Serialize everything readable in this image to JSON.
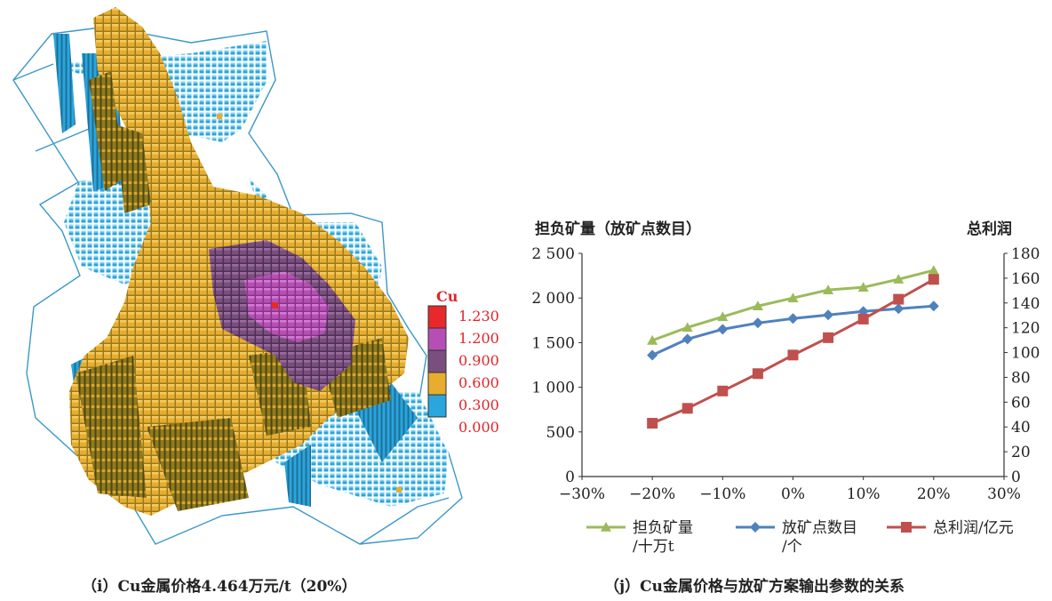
{
  "block_model": {
    "legend": {
      "title": "Cu",
      "entries": [
        {
          "label": "1.230",
          "color": "#e8282b"
        },
        {
          "label": "1.200",
          "color": "#b64fb5"
        },
        {
          "label": "0.900",
          "color": "#7a4f7e"
        },
        {
          "label": "0.600",
          "color": "#e8ad2e"
        },
        {
          "label": "0.300",
          "color": "#2aa6dc"
        },
        {
          "label": "0.000",
          "color": null
        }
      ],
      "label_color": "#e0242a"
    },
    "outline_color": "#3a98c8"
  },
  "captions": {
    "left": "（i）Cu金属价格4.464万元/t（20%）",
    "right": "（j）Cu金属价格与放矿方案输出参数的关系"
  },
  "chart_data": {
    "type": "line",
    "title_left": "担负矿量（放矿点数目）",
    "title_right": "总利润",
    "x_ticks": [
      "−30%",
      "−20%",
      "−10%",
      "0%",
      "10%",
      "20%",
      "30%"
    ],
    "x_range": [
      -30,
      30
    ],
    "y_left_ticks": [
      "0",
      "500",
      "1 000",
      "1 500",
      "2 000",
      "2 500"
    ],
    "y_left_range": [
      0,
      2500
    ],
    "y_right_ticks": [
      "0",
      "20",
      "40",
      "60",
      "80",
      "100",
      "120",
      "140",
      "160",
      "180"
    ],
    "y_right_range": [
      0,
      180
    ],
    "grid": false,
    "legend_position": "bottom",
    "series": [
      {
        "name": "担负矿量/十万t",
        "legend_lines": [
          "担负矿量",
          "/十万t"
        ],
        "axis": "left",
        "color": "#9bbb59",
        "marker": "triangle",
        "x": [
          -20,
          -15,
          -10,
          -5,
          0,
          5,
          10,
          15,
          20
        ],
        "y": [
          1525,
          1670,
          1790,
          1910,
          2000,
          2090,
          2120,
          2210,
          2310
        ]
      },
      {
        "name": "放矿点数目/个",
        "legend_lines": [
          "放矿点数目",
          "/个"
        ],
        "axis": "left",
        "color": "#4f81bd",
        "marker": "diamond",
        "x": [
          -20,
          -15,
          -10,
          -5,
          0,
          5,
          10,
          15,
          20
        ],
        "y": [
          1360,
          1540,
          1650,
          1720,
          1770,
          1810,
          1850,
          1880,
          1910
        ]
      },
      {
        "name": "总利润/亿元",
        "legend_lines": [
          "总利润/亿元"
        ],
        "axis": "right",
        "color": "#c0504d",
        "marker": "square",
        "x": [
          -20,
          -15,
          -10,
          -5,
          0,
          5,
          10,
          15,
          20
        ],
        "y": [
          43,
          55,
          69,
          83,
          98,
          112,
          127,
          143,
          159
        ]
      }
    ]
  }
}
